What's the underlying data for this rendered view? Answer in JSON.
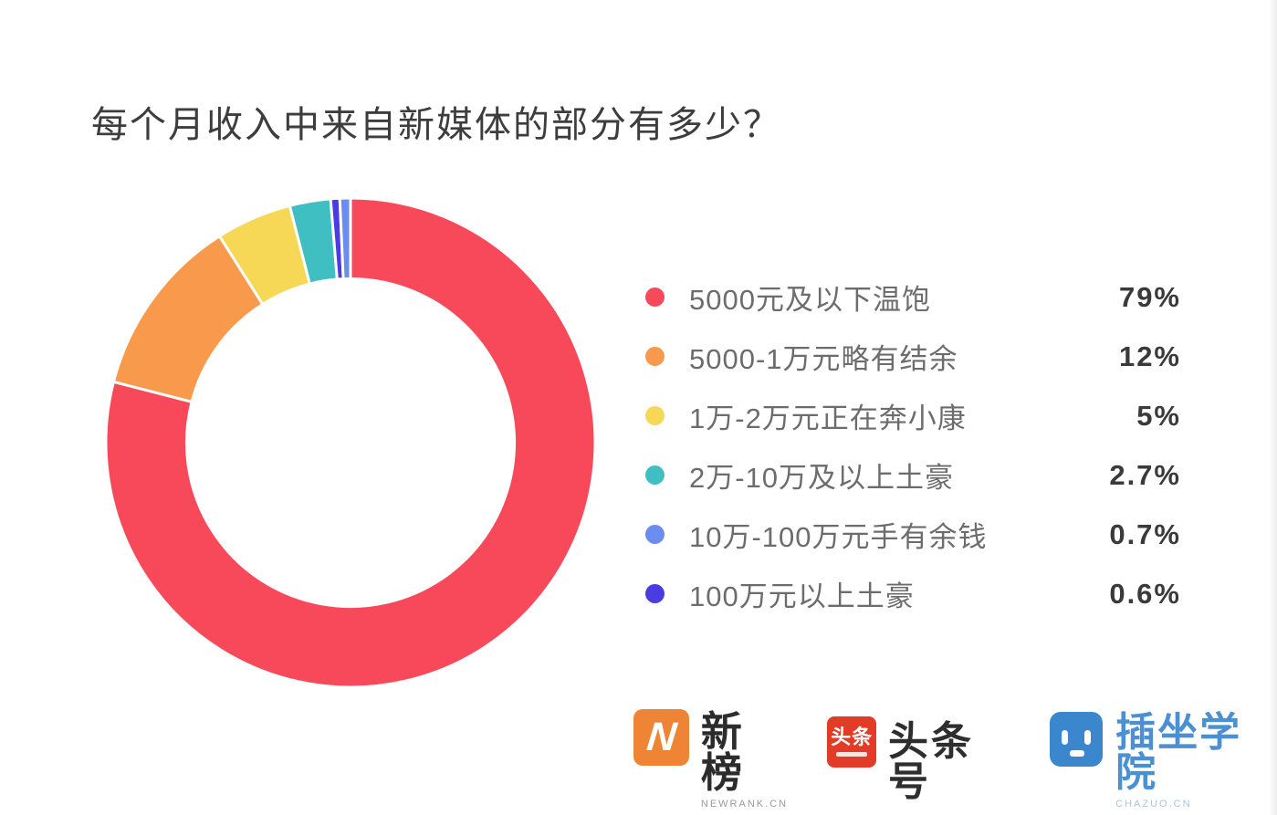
{
  "title": "每个月收入中来自新媒体的部分有多少？",
  "chart_data": {
    "type": "pie",
    "variant": "donut",
    "title": "每个月收入中来自新媒体的部分有多少？",
    "categories": [
      "5000元及以下温饱",
      "5000-1万元略有结余",
      "1万-2万元正在奔小康",
      "2万-10万及以上土豪",
      "10万-100万元手有余钱",
      "100万元以上土豪"
    ],
    "values": [
      79,
      12,
      5,
      2.7,
      0.7,
      0.6
    ],
    "value_labels": [
      "79%",
      "12%",
      "5%",
      "2.7%",
      "0.7%",
      "0.6%"
    ],
    "colors": [
      "#f8495b",
      "#f8994b",
      "#f7d856",
      "#3fbfc2",
      "#6b8df0",
      "#4a3be2"
    ],
    "legend_position": "right",
    "start_angle_deg": 0,
    "sweep": "clockwise",
    "inner_radius_ratio": 0.67,
    "slice_gap_color": "#ffffff",
    "visual_slice_order": [
      0,
      1,
      2,
      3,
      5,
      4
    ]
  },
  "footer": {
    "logos": [
      {
        "name": "新榜",
        "subtext": "NEWRANK.CN",
        "icon_text": "N",
        "icon_color": "#ef8435"
      },
      {
        "name": "头条号",
        "icon_text": "头条",
        "icon_color": "#e23c28"
      },
      {
        "name": "插坐学院",
        "subtext": "CHAZUO.CN",
        "icon_color": "#3a87ce",
        "text_color": "#4a90d2"
      }
    ]
  }
}
